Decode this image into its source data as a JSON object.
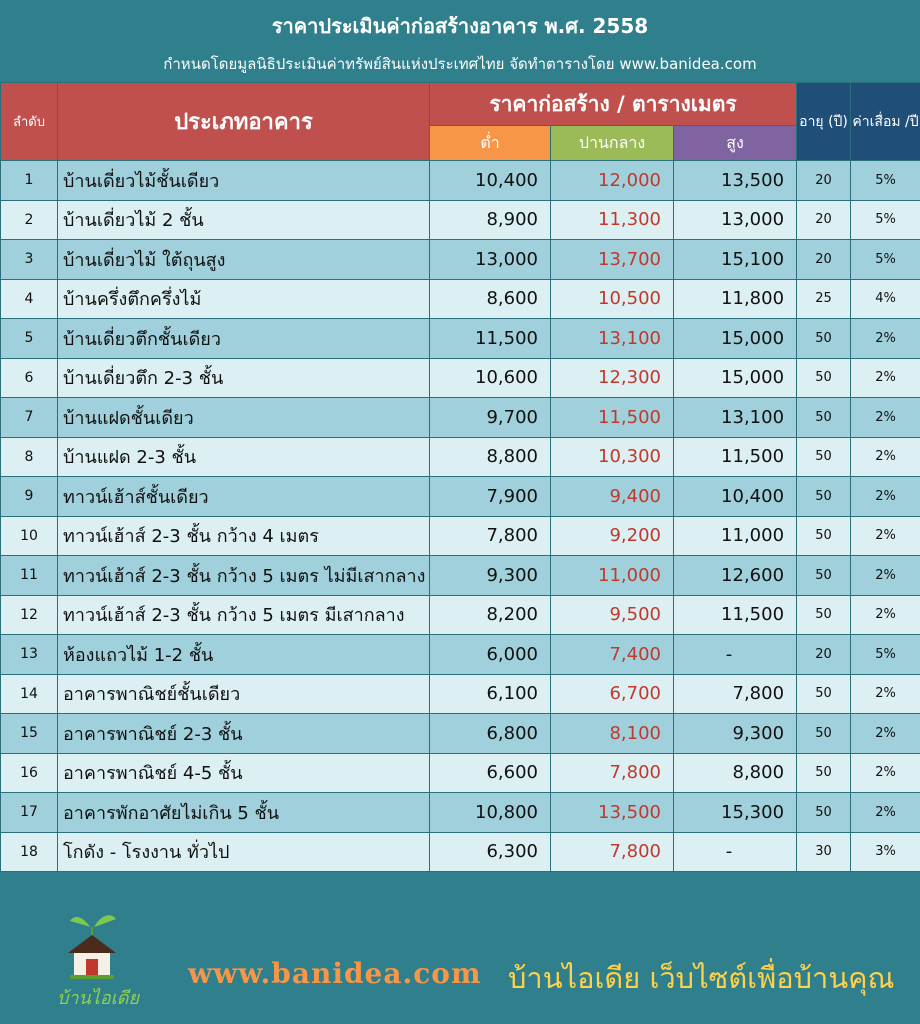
{
  "header": {
    "title": "ราคาประเมินค่าก่อสร้างอาคาร พ.ศ. 2558",
    "subtitle": "กำหนดโดยมูลนิธิประเมินค่าทรัพย์สินแห่งประเทศไทย จัดทำตารางโดย www.banidea.com"
  },
  "table": {
    "headers": {
      "no": "ลำดับ",
      "type": "ประเภทอาคาร",
      "price": "ราคาก่อสร้าง / ตารางเมตร",
      "low": "ต่ำ",
      "mid": "ปานกลาง",
      "high": "สูง",
      "age": "อายุ (ปี)",
      "depreciation": "ค่าเสื่อม /ปี"
    },
    "rows": [
      {
        "no": "1",
        "type": "บ้านเดี่ยวไม้ชั้นเดียว",
        "low": "10,400",
        "mid": "12,000",
        "high": "13,500",
        "age": "20",
        "dep": "5%"
      },
      {
        "no": "2",
        "type": "บ้านเดี่ยวไม้ 2 ชั้น",
        "low": "8,900",
        "mid": "11,300",
        "high": "13,000",
        "age": "20",
        "dep": "5%"
      },
      {
        "no": "3",
        "type": "บ้านเดี่ยวไม้ ใต้ถุนสูง",
        "low": "13,000",
        "mid": "13,700",
        "high": "15,100",
        "age": "20",
        "dep": "5%"
      },
      {
        "no": "4",
        "type": "บ้านครึ่งตึกครึ่งไม้",
        "low": "8,600",
        "mid": "10,500",
        "high": "11,800",
        "age": "25",
        "dep": "4%"
      },
      {
        "no": "5",
        "type": "บ้านเดี่ยวตึกชั้นเดียว",
        "low": "11,500",
        "mid": "13,100",
        "high": "15,000",
        "age": "50",
        "dep": "2%"
      },
      {
        "no": "6",
        "type": "บ้านเดี่ยวตึก 2-3 ชั้น",
        "low": "10,600",
        "mid": "12,300",
        "high": "15,000",
        "age": "50",
        "dep": "2%"
      },
      {
        "no": "7",
        "type": "บ้านแฝดชั้นเดียว",
        "low": "9,700",
        "mid": "11,500",
        "high": "13,100",
        "age": "50",
        "dep": "2%"
      },
      {
        "no": "8",
        "type": "บ้านแฝด 2-3 ชั้น",
        "low": "8,800",
        "mid": "10,300",
        "high": "11,500",
        "age": "50",
        "dep": "2%"
      },
      {
        "no": "9",
        "type": "ทาวน์เฮ้าส์ชั้นเดียว",
        "low": "7,900",
        "mid": "9,400",
        "high": "10,400",
        "age": "50",
        "dep": "2%"
      },
      {
        "no": "10",
        "type": "ทาวน์เฮ้าส์ 2-3 ชั้น กว้าง 4 เมตร",
        "low": "7,800",
        "mid": "9,200",
        "high": "11,000",
        "age": "50",
        "dep": "2%"
      },
      {
        "no": "11",
        "type": "ทาวน์เฮ้าส์ 2-3 ชั้น กว้าง 5 เมตร ไม่มีเสากลาง",
        "low": "9,300",
        "mid": "11,000",
        "high": "12,600",
        "age": "50",
        "dep": "2%"
      },
      {
        "no": "12",
        "type": "ทาวน์เฮ้าส์ 2-3 ชั้น กว้าง 5 เมตร มีเสากลาง",
        "low": "8,200",
        "mid": "9,500",
        "high": "11,500",
        "age": "50",
        "dep": "2%"
      },
      {
        "no": "13",
        "type": "ห้องแถวไม้ 1-2 ชั้น",
        "low": "6,000",
        "mid": "7,400",
        "high": "-",
        "age": "20",
        "dep": "5%"
      },
      {
        "no": "14",
        "type": "อาคารพาณิชย์ชั้นเดียว",
        "low": "6,100",
        "mid": "6,700",
        "high": "7,800",
        "age": "50",
        "dep": "2%"
      },
      {
        "no": "15",
        "type": "อาคารพาณิชย์ 2-3 ชั้น",
        "low": "6,800",
        "mid": "8,100",
        "high": "9,300",
        "age": "50",
        "dep": "2%"
      },
      {
        "no": "16",
        "type": "อาคารพาณิชย์ 4-5 ชั้น",
        "low": "6,600",
        "mid": "7,800",
        "high": "8,800",
        "age": "50",
        "dep": "2%"
      },
      {
        "no": "17",
        "type": "อาคารพักอาศัยไม่เกิน 5 ชั้น",
        "low": "10,800",
        "mid": "13,500",
        "high": "15,300",
        "age": "50",
        "dep": "2%"
      },
      {
        "no": "18",
        "type": "โกดัง - โรงงาน ทั่วไป",
        "low": "6,300",
        "mid": "7,800",
        "high": "-",
        "age": "30",
        "dep": "3%"
      }
    ]
  },
  "footer": {
    "logo_text": "บ้านไอเดีย",
    "site": "www.banidea.com",
    "tagline": "บ้านไอเดีย เว็บไซต์เพื่อบ้านคุณ"
  },
  "colors": {
    "background": "#2f7f8c",
    "header_red": "#c0504d",
    "low_orange": "#f79646",
    "mid_green": "#9bbb59",
    "high_purple": "#8064a2",
    "navy": "#1f4e79",
    "row_dark": "#9fd0dc",
    "row_light": "#dcf0f4",
    "mid_text": "#c0392b"
  },
  "icons": [
    "house-sprout-logo-icon"
  ]
}
